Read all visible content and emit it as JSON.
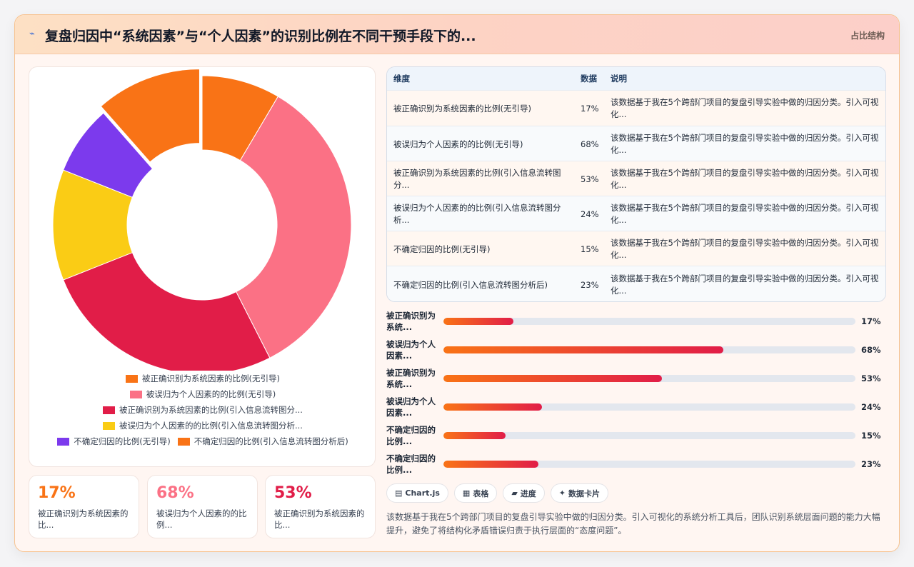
{
  "header": {
    "icon": "sparkle-icon",
    "title": "复盘归因中“系统因素”与“个人因素”的识别比例在不同干预手段下的...",
    "tag": "占比结构"
  },
  "chart_data": {
    "type": "pie",
    "donut": true,
    "categories": [
      "被正确识别为系统因素的比例(无引导)",
      "被误归为个人因素的的比例(无引导)",
      "被正确识别为系统因素的比例(引入信息流转图分...",
      "被误归为个人因素的的比例(引入信息流转图分析...",
      "不确定归因的比例(无引导)",
      "不确定归因的比例(引入信息流转图分析后)"
    ],
    "values": [
      17,
      68,
      53,
      24,
      15,
      23
    ],
    "colors": [
      "#f97316",
      "#fb7185",
      "#e11d48",
      "#facc15",
      "#7c3aed",
      "#f97316"
    ],
    "exploded_index": 5,
    "legend_position": "bottom"
  },
  "stats": [
    {
      "value": "17%",
      "label": "被正确识别为系统因素的比...",
      "color": "#f97316"
    },
    {
      "value": "68%",
      "label": "被误归为个人因素的的比例...",
      "color": "#fb7185"
    },
    {
      "value": "53%",
      "label": "被正确识别为系统因素的比...",
      "color": "#e11d48"
    }
  ],
  "table": {
    "headers": [
      "维度",
      "数据",
      "说明"
    ],
    "rows": [
      {
        "dim": "被正确识别为系统因素的比例(无引导)",
        "val": "17%",
        "desc": "该数据基于我在5个跨部门项目的复盘引导实验中做的归因分类。引入可视化..."
      },
      {
        "dim": "被误归为个人因素的的比例(无引导)",
        "val": "68%",
        "desc": "该数据基于我在5个跨部门项目的复盘引导实验中做的归因分类。引入可视化..."
      },
      {
        "dim": "被正确识别为系统因素的比例(引入信息流转图分...",
        "val": "53%",
        "desc": "该数据基于我在5个跨部门项目的复盘引导实验中做的归因分类。引入可视化..."
      },
      {
        "dim": "被误归为个人因素的的比例(引入信息流转图分析...",
        "val": "24%",
        "desc": "该数据基于我在5个跨部门项目的复盘引导实验中做的归因分类。引入可视化..."
      },
      {
        "dim": "不确定归因的比例(无引导)",
        "val": "15%",
        "desc": "该数据基于我在5个跨部门项目的复盘引导实验中做的归因分类。引入可视化..."
      },
      {
        "dim": "不确定归因的比例(引入信息流转图分析后)",
        "val": "23%",
        "desc": "该数据基于我在5个跨部门项目的复盘引导实验中做的归因分类。引入可视化..."
      }
    ]
  },
  "bars": [
    {
      "label": "被正确识别为系统...",
      "value": 17,
      "text": "17%"
    },
    {
      "label": "被误归为个人因素...",
      "value": 68,
      "text": "68%"
    },
    {
      "label": "被正确识别为系统...",
      "value": 53,
      "text": "53%"
    },
    {
      "label": "被误归为个人因素...",
      "value": 24,
      "text": "24%"
    },
    {
      "label": "不确定归因的比例...",
      "value": 15,
      "text": "15%"
    },
    {
      "label": "不确定归因的比例...",
      "value": 23,
      "text": "23%"
    }
  ],
  "chips": [
    {
      "icon": "chart-icon",
      "glyph": "▤",
      "label": "Chart.js"
    },
    {
      "icon": "table-icon",
      "glyph": "▦",
      "label": "表格"
    },
    {
      "icon": "progress-icon",
      "glyph": "▰",
      "label": "进度"
    },
    {
      "icon": "card-icon",
      "glyph": "✦",
      "label": "数据卡片"
    }
  ],
  "note": "该数据基于我在5个跨部门项目的复盘引导实验中做的归因分类。引入可视化的系统分析工具后，团队识别系统层面问题的能力大幅提升，避免了将结构化矛盾错误归责于执行层面的“态度问题”。"
}
